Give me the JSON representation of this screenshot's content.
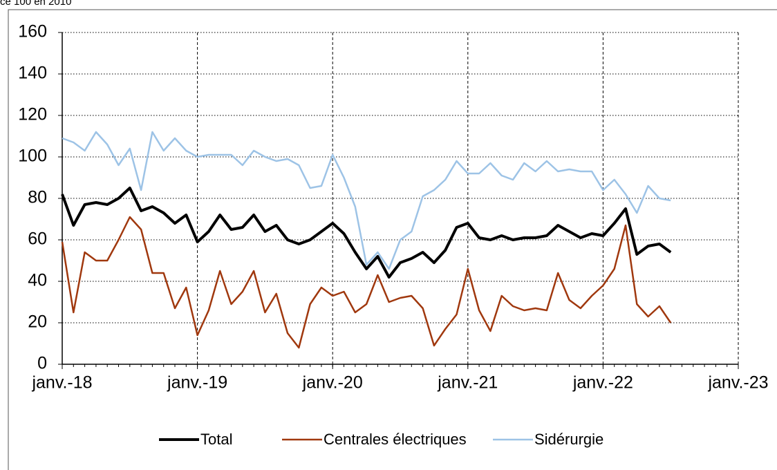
{
  "chart_data": {
    "type": "line",
    "subtitle": "ce 100 en 2010",
    "x": [
      "2018-01",
      "2018-02",
      "2018-03",
      "2018-04",
      "2018-05",
      "2018-06",
      "2018-07",
      "2018-08",
      "2018-09",
      "2018-10",
      "2018-11",
      "2018-12",
      "2019-01",
      "2019-02",
      "2019-03",
      "2019-04",
      "2019-05",
      "2019-06",
      "2019-07",
      "2019-08",
      "2019-09",
      "2019-10",
      "2019-11",
      "2019-12",
      "2020-01",
      "2020-02",
      "2020-03",
      "2020-04",
      "2020-05",
      "2020-06",
      "2020-07",
      "2020-08",
      "2020-09",
      "2020-10",
      "2020-11",
      "2020-12",
      "2021-01",
      "2021-02",
      "2021-03",
      "2021-04",
      "2021-05",
      "2021-06",
      "2021-07",
      "2021-08",
      "2021-09",
      "2021-10",
      "2021-11",
      "2021-12",
      "2022-01",
      "2022-02",
      "2022-03",
      "2022-04",
      "2022-05",
      "2022-06",
      "2022-07"
    ],
    "series": [
      {
        "name": "Total",
        "color": "#000000",
        "width": 4,
        "values": [
          82,
          67,
          77,
          78,
          77,
          80,
          85,
          74,
          76,
          73,
          68,
          72,
          59,
          64,
          72,
          65,
          66,
          72,
          64,
          67,
          60,
          58,
          60,
          64,
          68,
          63,
          54,
          46,
          52,
          42,
          49,
          51,
          54,
          49,
          55,
          66,
          68,
          61,
          60,
          62,
          60,
          61,
          61,
          62,
          67,
          64,
          61,
          63,
          62,
          68,
          75,
          53,
          57,
          58,
          54
        ]
      },
      {
        "name": "Centrales électriques",
        "color": "#a0380e",
        "width": 2.5,
        "values": [
          59,
          25,
          54,
          50,
          50,
          60,
          71,
          65,
          44,
          44,
          27,
          37,
          14,
          26,
          45,
          29,
          35,
          45,
          25,
          34,
          15,
          8,
          29,
          37,
          33,
          35,
          25,
          29,
          43,
          30,
          32,
          33,
          27,
          9,
          17,
          24,
          46,
          26,
          16,
          33,
          28,
          26,
          27,
          26,
          44,
          31,
          27,
          33,
          38,
          46,
          67,
          29,
          23,
          28,
          20
        ]
      },
      {
        "name": "Sidérurgie",
        "color": "#9dc3e6",
        "width": 2.5,
        "values": [
          109,
          107,
          103,
          112,
          106,
          96,
          104,
          84,
          112,
          103,
          109,
          103,
          100,
          101,
          101,
          101,
          96,
          103,
          100,
          98,
          99,
          96,
          85,
          86,
          101,
          90,
          76,
          48,
          54,
          46,
          60,
          64,
          81,
          84,
          89,
          98,
          92,
          92,
          97,
          91,
          89,
          97,
          93,
          98,
          93,
          94,
          93,
          93,
          84,
          89,
          82,
          73,
          86,
          80,
          79
        ]
      }
    ],
    "xlim": [
      "2018-01",
      "2023-01"
    ],
    "xticks": [
      {
        "value": "2018-01",
        "label": "janv.-18"
      },
      {
        "value": "2019-01",
        "label": "janv.-19"
      },
      {
        "value": "2020-01",
        "label": "janv.-20"
      },
      {
        "value": "2021-01",
        "label": "janv.-21"
      },
      {
        "value": "2022-01",
        "label": "janv.-22"
      },
      {
        "value": "2023-01",
        "label": "janv.-23"
      }
    ],
    "ylim": [
      0,
      160
    ],
    "yticks": [
      0,
      20,
      40,
      60,
      80,
      100,
      120,
      140,
      160
    ],
    "grid": true,
    "legend": "bottom"
  }
}
